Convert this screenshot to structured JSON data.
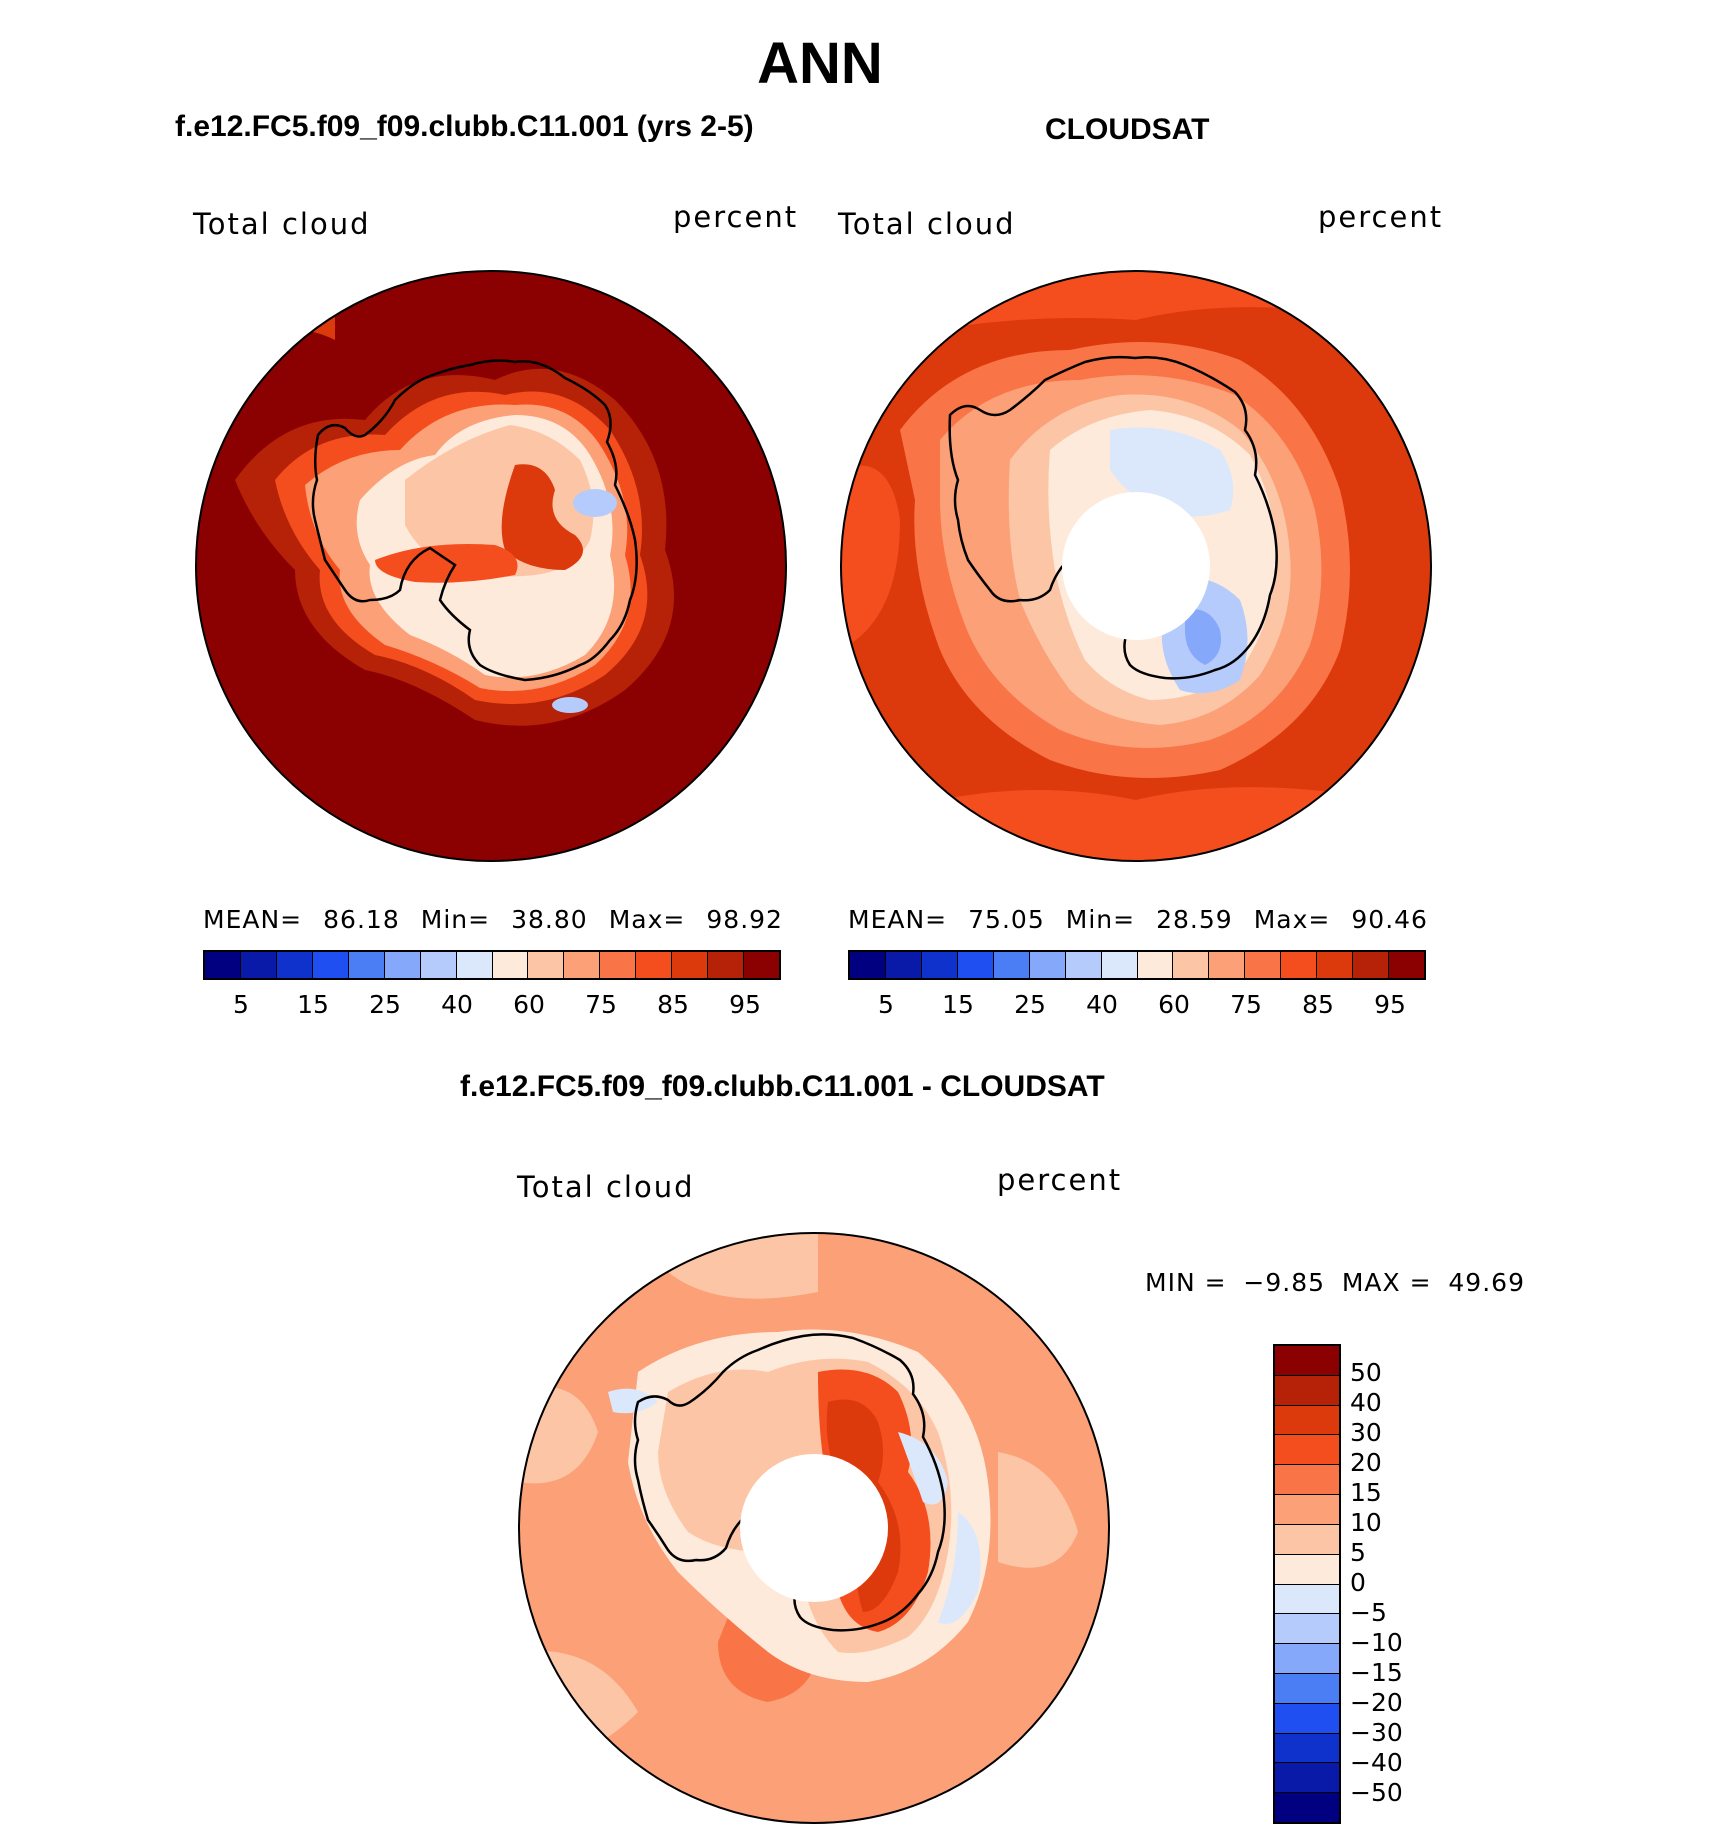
{
  "figure": {
    "season": "ANN",
    "test_case": "f.e12.FC5.f09_f09.clubb.C11.001 (yrs 2-5)",
    "obs_case": "CLOUDSAT",
    "diff_title": "f.e12.FC5.f09_f09.clubb.C11.001 - CLOUDSAT"
  },
  "panels": {
    "test": {
      "variable": "Total cloud",
      "units": "percent",
      "mean_label": "MEAN=",
      "mean": "86.18",
      "min_label": "Min=",
      "min": "38.80",
      "max_label": "Max=",
      "max": "98.92"
    },
    "obs": {
      "variable": "Total cloud",
      "units": "percent",
      "mean_label": "MEAN=",
      "mean": "75.05",
      "min_label": "Min=",
      "min": "28.59",
      "max_label": "Max=",
      "max": "90.46"
    },
    "diff": {
      "variable": "Total cloud",
      "units": "percent",
      "min_label": "MIN =",
      "min": "−9.85",
      "max_label": "MAX =",
      "max": "49.69"
    }
  },
  "colorbar_main": {
    "colors": [
      "#000080",
      "#0a1aa8",
      "#0f31cc",
      "#1f4ff0",
      "#4b7ef5",
      "#86a8fa",
      "#b5cbfb",
      "#dbe8fc",
      "#fdeadb",
      "#fcc6a6",
      "#fba077",
      "#f97446",
      "#f44d1e",
      "#dc3a0c",
      "#b52208",
      "#8b0000"
    ],
    "ticks": [
      "5",
      "15",
      "25",
      "40",
      "60",
      "75",
      "85",
      "95"
    ]
  },
  "colorbar_diff": {
    "colors": [
      "#8b0000",
      "#b52208",
      "#dc3a0c",
      "#f44d1e",
      "#f97446",
      "#fba077",
      "#fcc6a6",
      "#fdeadb",
      "#dbe8fc",
      "#b5cbfb",
      "#86a8fa",
      "#4b7ef5",
      "#1f4ff0",
      "#0f31cc",
      "#0a1aa8",
      "#000080"
    ],
    "ticks": [
      "50",
      "40",
      "30",
      "20",
      "15",
      "10",
      "5",
      "0",
      "−5",
      "−10",
      "−15",
      "−20",
      "−30",
      "−40",
      "−50"
    ]
  }
}
